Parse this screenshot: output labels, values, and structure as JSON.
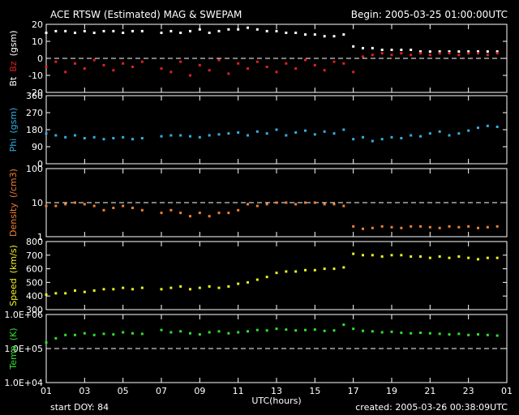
{
  "header": {
    "title": "ACE RTSW (Estimated) MAG & SWEPAM",
    "begin": "Begin: 2005-03-25 01:00:00UTC"
  },
  "footer": {
    "start": "start DOY:  84",
    "created": "created: 2005-03-26 00:38:09UTC"
  },
  "chart_data": [
    {
      "type": "scatter",
      "ylabel": "(gsm)",
      "ylabel_color": "#ffffff",
      "ylim": [
        -20,
        20
      ],
      "yticks": [
        -20,
        -10,
        0,
        10,
        20
      ],
      "hlines": [
        0
      ],
      "xlim": [
        1,
        25
      ],
      "x": [
        1,
        1.5,
        2,
        2.5,
        3,
        3.5,
        4,
        4.5,
        5,
        5.5,
        6,
        6.5,
        7,
        7.5,
        8,
        8.5,
        9,
        9.5,
        10,
        10.5,
        11,
        11.5,
        12,
        12.5,
        13,
        13.5,
        14,
        14.5,
        15,
        15.5,
        16,
        16.5,
        17,
        17.5,
        18,
        18.5,
        19,
        19.5,
        20,
        20.5,
        21,
        21.5,
        22,
        22.5,
        23,
        23.5,
        24,
        24.5
      ],
      "series": [
        {
          "name": "Bt",
          "color": "#ffffff",
          "values": [
            15,
            16,
            16,
            15,
            16,
            15,
            16,
            16,
            15,
            16,
            16,
            null,
            15,
            16,
            15,
            16,
            17,
            15,
            16,
            17,
            17,
            18,
            17,
            16,
            16,
            15,
            15,
            14,
            14,
            13,
            13,
            14,
            7,
            6,
            6,
            5,
            5,
            5,
            5,
            4,
            4,
            4,
            4,
            4,
            4,
            4,
            4,
            4
          ]
        },
        {
          "name": "Bz",
          "color": "#e02020",
          "values": [
            -5,
            -2,
            -8,
            -3,
            -6,
            -1,
            -4,
            -7,
            -3,
            -5,
            -2,
            null,
            -6,
            -8,
            -2,
            -10,
            -4,
            -7,
            -1,
            -9,
            -3,
            -6,
            -2,
            -5,
            -8,
            -3,
            -6,
            -1,
            -4,
            -7,
            -2,
            -3,
            -8,
            1,
            2,
            3,
            2,
            3,
            2,
            3,
            2,
            3,
            3,
            2,
            3,
            3,
            2,
            3
          ]
        }
      ]
    },
    {
      "type": "scatter",
      "ylabel": "(gsm)",
      "ylabel_color": "#30b0e0",
      "ylim": [
        0,
        360
      ],
      "yticks": [
        0,
        90,
        180,
        270,
        360
      ],
      "hlines": [],
      "xlim": [
        1,
        25
      ],
      "x": [
        1,
        1.5,
        2,
        2.5,
        3,
        3.5,
        4,
        4.5,
        5,
        5.5,
        6,
        6.5,
        7,
        7.5,
        8,
        8.5,
        9,
        9.5,
        10,
        10.5,
        11,
        11.5,
        12,
        12.5,
        13,
        13.5,
        14,
        14.5,
        15,
        15.5,
        16,
        16.5,
        17,
        17.5,
        18,
        18.5,
        19,
        19.5,
        20,
        20.5,
        21,
        21.5,
        22,
        22.5,
        23,
        23.5,
        24,
        24.5
      ],
      "series": [
        {
          "name": "Phi",
          "color": "#30b0e0",
          "values": [
            160,
            150,
            140,
            150,
            135,
            140,
            130,
            135,
            140,
            130,
            135,
            null,
            145,
            150,
            150,
            145,
            140,
            150,
            155,
            160,
            165,
            150,
            170,
            160,
            180,
            150,
            165,
            175,
            155,
            170,
            160,
            180,
            130,
            140,
            120,
            130,
            140,
            135,
            150,
            145,
            160,
            170,
            150,
            160,
            175,
            190,
            200,
            195
          ]
        }
      ]
    },
    {
      "type": "scatter",
      "log": true,
      "ylabel": "(/cm3)",
      "ylabel_color": "#f08030",
      "ylim": [
        1,
        100
      ],
      "yticks": [
        1,
        10,
        100
      ],
      "hlines": [
        10
      ],
      "xlim": [
        1,
        25
      ],
      "x": [
        1,
        1.5,
        2,
        2.5,
        3,
        3.5,
        4,
        4.5,
        5,
        5.5,
        6,
        6.5,
        7,
        7.5,
        8,
        8.5,
        9,
        9.5,
        10,
        10.5,
        11,
        11.5,
        12,
        12.5,
        13,
        13.5,
        14,
        14.5,
        15,
        15.5,
        16,
        16.5,
        17,
        17.5,
        18,
        18.5,
        19,
        19.5,
        20,
        20.5,
        21,
        21.5,
        22,
        22.5,
        23,
        23.5,
        24,
        24.5
      ],
      "series": [
        {
          "name": "Density",
          "color": "#f08030",
          "values": [
            8,
            8,
            9,
            10,
            9,
            8,
            6,
            7,
            8,
            7,
            6,
            null,
            5,
            6,
            5,
            4,
            5,
            4,
            5,
            5,
            6,
            9,
            8,
            9,
            10,
            10,
            9,
            10,
            10,
            9,
            9,
            8,
            2,
            1.7,
            1.8,
            2,
            1.9,
            1.8,
            2,
            2,
            1.9,
            1.8,
            2,
            1.9,
            2,
            1.8,
            1.9,
            2
          ]
        }
      ]
    },
    {
      "type": "scatter",
      "ylabel": "(km/s)",
      "ylabel_color": "#f0f020",
      "ylim": [
        300,
        800
      ],
      "yticks": [
        300,
        400,
        500,
        600,
        700,
        800
      ],
      "hlines": [],
      "xlim": [
        1,
        25
      ],
      "x": [
        1,
        1.5,
        2,
        2.5,
        3,
        3.5,
        4,
        4.5,
        5,
        5.5,
        6,
        6.5,
        7,
        7.5,
        8,
        8.5,
        9,
        9.5,
        10,
        10.5,
        11,
        11.5,
        12,
        12.5,
        13,
        13.5,
        14,
        14.5,
        15,
        15.5,
        16,
        16.5,
        17,
        17.5,
        18,
        18.5,
        19,
        19.5,
        20,
        20.5,
        21,
        21.5,
        22,
        22.5,
        23,
        23.5,
        24,
        24.5
      ],
      "series": [
        {
          "name": "Speed",
          "color": "#f0f020",
          "values": [
            410,
            420,
            420,
            440,
            430,
            440,
            450,
            450,
            460,
            450,
            460,
            null,
            450,
            460,
            470,
            450,
            460,
            470,
            460,
            470,
            490,
            500,
            520,
            540,
            570,
            580,
            580,
            590,
            590,
            600,
            600,
            610,
            710,
            700,
            700,
            690,
            700,
            700,
            690,
            690,
            680,
            690,
            680,
            690,
            680,
            670,
            680,
            680
          ]
        }
      ]
    },
    {
      "type": "scatter",
      "log": true,
      "ylabel": "(K)",
      "ylabel_color": "#30e030",
      "ylim": [
        10000,
        1000000
      ],
      "yticks": [
        {
          "value": 10000,
          "label": "1.0E+04"
        },
        {
          "value": 100000,
          "label": "1.0E+05"
        },
        {
          "value": 1000000,
          "label": "1.0E+06"
        }
      ],
      "hlines": [
        100000
      ],
      "xlim": [
        1,
        25
      ],
      "xlabel": "UTC(hours)",
      "xticks": [
        {
          "value": 1,
          "label": "01"
        },
        {
          "value": 3,
          "label": "03"
        },
        {
          "value": 5,
          "label": "05"
        },
        {
          "value": 7,
          "label": "07"
        },
        {
          "value": 9,
          "label": "09"
        },
        11,
        13,
        15,
        17,
        19,
        21,
        23,
        {
          "value": 25,
          "label": "01"
        }
      ],
      "x": [
        1,
        1.5,
        2,
        2.5,
        3,
        3.5,
        4,
        4.5,
        5,
        5.5,
        6,
        6.5,
        7,
        7.5,
        8,
        8.5,
        9,
        9.5,
        10,
        10.5,
        11,
        11.5,
        12,
        12.5,
        13,
        13.5,
        14,
        14.5,
        15,
        15.5,
        16,
        16.5,
        17,
        17.5,
        18,
        18.5,
        19,
        19.5,
        20,
        20.5,
        21,
        21.5,
        22,
        22.5,
        23,
        23.5,
        24,
        24.5
      ],
      "series": [
        {
          "name": "Temp",
          "color": "#30e030",
          "values": [
            150000,
            200000,
            250000,
            250000,
            280000,
            250000,
            270000,
            260000,
            300000,
            280000,
            270000,
            null,
            350000,
            300000,
            320000,
            280000,
            260000,
            300000,
            320000,
            280000,
            300000,
            320000,
            350000,
            340000,
            380000,
            360000,
            340000,
            350000,
            360000,
            330000,
            340000,
            500000,
            380000,
            330000,
            320000,
            300000,
            310000,
            290000,
            280000,
            290000,
            280000,
            270000,
            260000,
            270000,
            250000,
            260000,
            250000,
            240000
          ]
        }
      ]
    }
  ]
}
